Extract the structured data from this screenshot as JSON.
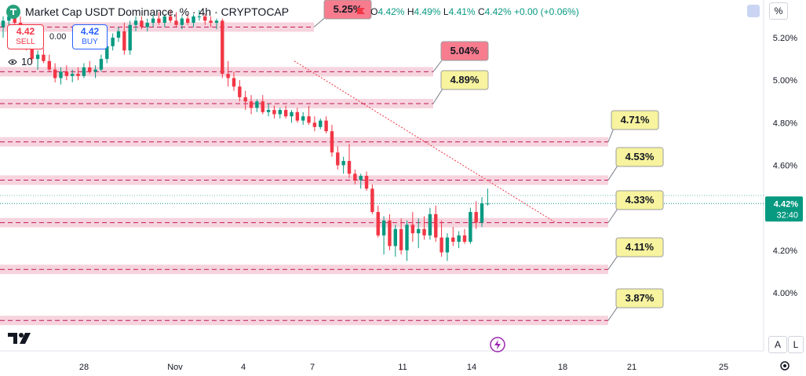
{
  "header": {
    "title": "Market Cap USDT Dominance, % · 4h · CRYPTOCAP",
    "ohlc": {
      "o_label": "O",
      "o_value": "4.42%",
      "h_label": "H",
      "h_value": "4.49%",
      "l_label": "L",
      "l_value": "4.41%",
      "c_label": "C",
      "c_value": "4.42%",
      "change": "+0.00 (+0.06%)"
    }
  },
  "trade": {
    "sell_price": "4.42",
    "sell_label": "SELL",
    "spread": "0.00",
    "buy_price": "4.42",
    "buy_label": "BUY"
  },
  "indicators": {
    "count": "10"
  },
  "corner": {
    "percent_label": "%"
  },
  "bottom_buttons": {
    "auto": "A",
    "log": "L"
  },
  "colors": {
    "up": "#089981",
    "down": "#f23645",
    "zone_fill": "#f3c6d3",
    "label_yellow": "#f7f39e",
    "label_pink": "#f77c8e",
    "price_tag": "#089981"
  },
  "chart_data": {
    "type": "candlestick",
    "x_ticks": [
      "28",
      "Nov",
      "4",
      "7",
      "11",
      "14",
      "18",
      "21",
      "25"
    ],
    "y_ticks": [
      "5.20%",
      "5.00%",
      "4.80%",
      "4.60%",
      "4.40%",
      "4.20%",
      "4.00%"
    ],
    "ylim": [
      3.85,
      5.36
    ],
    "last_price": "4.42%",
    "countdown": "32:40",
    "levels": [
      {
        "label": "5.25%",
        "value": 5.25,
        "style": "pink"
      },
      {
        "label": "5.04%",
        "value": 5.04,
        "style": "pink"
      },
      {
        "label": "4.89%",
        "value": 4.89,
        "style": "yellow"
      },
      {
        "label": "4.71%",
        "value": 4.71,
        "style": "yellow"
      },
      {
        "label": "4.53%",
        "value": 4.53,
        "style": "yellow"
      },
      {
        "label": "4.33%",
        "value": 4.33,
        "style": "yellow"
      },
      {
        "label": "4.11%",
        "value": 4.11,
        "style": "yellow"
      },
      {
        "label": "3.87%",
        "value": 3.87,
        "style": "yellow"
      }
    ],
    "trendline": {
      "from": [
        "Nov 6",
        5.09
      ],
      "to": [
        "Nov 17",
        4.33
      ]
    },
    "candles": [
      [
        5.25,
        5.3,
        5.2,
        5.28
      ],
      [
        5.28,
        5.32,
        5.25,
        5.3
      ],
      [
        5.3,
        5.33,
        5.26,
        5.27
      ],
      [
        5.27,
        5.3,
        5.2,
        5.22
      ],
      [
        5.22,
        5.25,
        5.14,
        5.16
      ],
      [
        5.16,
        5.19,
        5.08,
        5.1
      ],
      [
        5.1,
        5.14,
        5.05,
        5.12
      ],
      [
        5.12,
        5.15,
        5.08,
        5.09
      ],
      [
        5.09,
        5.12,
        5.04,
        5.05
      ],
      [
        5.05,
        5.08,
        4.99,
        5.01
      ],
      [
        5.01,
        5.06,
        4.98,
        5.04
      ],
      [
        5.04,
        5.07,
        5.0,
        5.02
      ],
      [
        5.02,
        5.05,
        4.99,
        5.03
      ],
      [
        5.03,
        5.06,
        5.0,
        5.02
      ],
      [
        5.02,
        5.08,
        5.01,
        5.06
      ],
      [
        5.06,
        5.09,
        5.03,
        5.04
      ],
      [
        5.04,
        5.07,
        5.01,
        5.05
      ],
      [
        5.05,
        5.12,
        5.04,
        5.1
      ],
      [
        5.1,
        5.18,
        5.08,
        5.16
      ],
      [
        5.16,
        5.22,
        5.14,
        5.2
      ],
      [
        5.2,
        5.25,
        5.18,
        5.23
      ],
      [
        5.23,
        5.27,
        5.12,
        5.14
      ],
      [
        5.14,
        5.28,
        5.12,
        5.26
      ],
      [
        5.26,
        5.3,
        5.23,
        5.28
      ],
      [
        5.28,
        5.3,
        5.24,
        5.25
      ],
      [
        5.25,
        5.29,
        5.23,
        5.27
      ],
      [
        5.27,
        5.31,
        5.25,
        5.29
      ],
      [
        5.29,
        5.32,
        5.26,
        5.27
      ],
      [
        5.27,
        5.31,
        5.25,
        5.3
      ],
      [
        5.3,
        5.33,
        5.27,
        5.28
      ],
      [
        5.28,
        5.32,
        5.25,
        5.26
      ],
      [
        5.26,
        5.3,
        5.24,
        5.29
      ],
      [
        5.29,
        5.31,
        5.26,
        5.27
      ],
      [
        5.27,
        5.31,
        5.25,
        5.3
      ],
      [
        5.3,
        5.33,
        5.28,
        5.3
      ],
      [
        5.3,
        5.31,
        5.26,
        5.28
      ],
      [
        5.28,
        5.3,
        5.25,
        5.27
      ],
      [
        5.27,
        5.29,
        5.24,
        5.28
      ],
      [
        5.28,
        5.29,
        5.01,
        5.03
      ],
      [
        5.03,
        5.09,
        4.97,
        5.01
      ],
      [
        5.01,
        5.04,
        4.95,
        4.97
      ],
      [
        4.97,
        5.0,
        4.9,
        4.92
      ],
      [
        4.92,
        4.95,
        4.86,
        4.9
      ],
      [
        4.9,
        4.93,
        4.84,
        4.87
      ],
      [
        4.87,
        4.91,
        4.85,
        4.9
      ],
      [
        4.9,
        4.93,
        4.84,
        4.85
      ],
      [
        4.85,
        4.89,
        4.83,
        4.86
      ],
      [
        4.86,
        4.88,
        4.82,
        4.84
      ],
      [
        4.84,
        4.87,
        4.82,
        4.86
      ],
      [
        4.86,
        4.88,
        4.82,
        4.83
      ],
      [
        4.83,
        4.86,
        4.8,
        4.85
      ],
      [
        4.85,
        4.87,
        4.8,
        4.81
      ],
      [
        4.81,
        4.85,
        4.79,
        4.83
      ],
      [
        4.83,
        4.88,
        4.79,
        4.8
      ],
      [
        4.8,
        4.83,
        4.76,
        4.78
      ],
      [
        4.78,
        4.82,
        4.77,
        4.81
      ],
      [
        4.81,
        4.83,
        4.75,
        4.76
      ],
      [
        4.76,
        4.79,
        4.64,
        4.66
      ],
      [
        4.66,
        4.69,
        4.58,
        4.6
      ],
      [
        4.6,
        4.64,
        4.56,
        4.62
      ],
      [
        4.62,
        4.7,
        4.54,
        4.56
      ],
      [
        4.56,
        4.58,
        4.51,
        4.53
      ],
      [
        4.53,
        4.56,
        4.49,
        4.55
      ],
      [
        4.55,
        4.57,
        4.48,
        4.49
      ],
      [
        4.49,
        4.51,
        4.37,
        4.38
      ],
      [
        4.38,
        4.41,
        4.26,
        4.27
      ],
      [
        4.27,
        4.36,
        4.18,
        4.34
      ],
      [
        4.34,
        4.37,
        4.2,
        4.22
      ],
      [
        4.22,
        4.32,
        4.17,
        4.3
      ],
      [
        4.3,
        4.35,
        4.18,
        4.2
      ],
      [
        4.2,
        4.34,
        4.15,
        4.32
      ],
      [
        4.32,
        4.38,
        4.24,
        4.28
      ],
      [
        4.28,
        4.35,
        4.21,
        4.3
      ],
      [
        4.3,
        4.36,
        4.25,
        4.27
      ],
      [
        4.27,
        4.4,
        4.25,
        4.37
      ],
      [
        4.37,
        4.41,
        4.24,
        4.26
      ],
      [
        4.26,
        4.34,
        4.17,
        4.19
      ],
      [
        4.19,
        4.28,
        4.15,
        4.26
      ],
      [
        4.26,
        4.31,
        4.22,
        4.24
      ],
      [
        4.24,
        4.29,
        4.21,
        4.27
      ],
      [
        4.27,
        4.3,
        4.23,
        4.24
      ],
      [
        4.24,
        4.4,
        4.23,
        4.38
      ],
      [
        4.38,
        4.43,
        4.3,
        4.33
      ],
      [
        4.33,
        4.45,
        4.31,
        4.42
      ],
      [
        4.42,
        4.49,
        4.41,
        4.42
      ]
    ]
  }
}
